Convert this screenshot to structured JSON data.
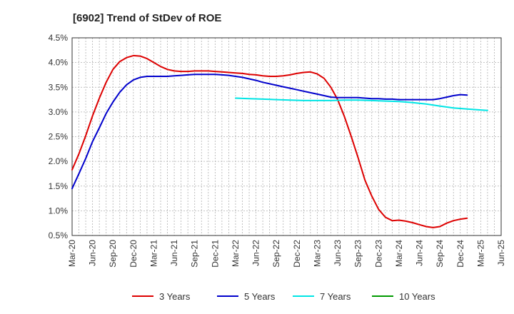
{
  "chart_data": {
    "type": "line",
    "title": "[6902]  Trend of StDev of ROE",
    "xlabel": "",
    "ylabel": "",
    "ylim": [
      0.5,
      4.5
    ],
    "y_ticks": [
      "0.5%",
      "1.0%",
      "1.5%",
      "2.0%",
      "2.5%",
      "3.0%",
      "3.5%",
      "4.0%",
      "4.5%"
    ],
    "y_tick_values": [
      0.5,
      1.0,
      1.5,
      2.0,
      2.5,
      3.0,
      3.5,
      4.0,
      4.5
    ],
    "x_ticks": [
      "Mar-20",
      "Jun-20",
      "Sep-20",
      "Dec-20",
      "Mar-21",
      "Jun-21",
      "Sep-21",
      "Dec-21",
      "Mar-22",
      "Jun-22",
      "Sep-22",
      "Dec-22",
      "Mar-23",
      "Jun-23",
      "Sep-23",
      "Dec-23",
      "Mar-24",
      "Jun-24",
      "Sep-24",
      "Dec-24",
      "Mar-25",
      "Jun-25"
    ],
    "x_note": "x values are month indices from Mar-20 (0) to Jun-25 (63)",
    "x_range": [
      0,
      63
    ],
    "grid": true,
    "legend_position": "bottom",
    "series": [
      {
        "name": "3 Years",
        "color": "#dd0000",
        "points": [
          [
            0,
            1.83
          ],
          [
            1,
            2.15
          ],
          [
            2,
            2.52
          ],
          [
            3,
            2.92
          ],
          [
            4,
            3.28
          ],
          [
            5,
            3.6
          ],
          [
            6,
            3.86
          ],
          [
            7,
            4.02
          ],
          [
            8,
            4.1
          ],
          [
            9,
            4.14
          ],
          [
            10,
            4.13
          ],
          [
            11,
            4.08
          ],
          [
            12,
            4.0
          ],
          [
            13,
            3.92
          ],
          [
            14,
            3.86
          ],
          [
            15,
            3.83
          ],
          [
            16,
            3.82
          ],
          [
            17,
            3.82
          ],
          [
            18,
            3.83
          ],
          [
            19,
            3.83
          ],
          [
            20,
            3.83
          ],
          [
            21,
            3.82
          ],
          [
            22,
            3.81
          ],
          [
            23,
            3.8
          ],
          [
            24,
            3.79
          ],
          [
            25,
            3.78
          ],
          [
            26,
            3.76
          ],
          [
            27,
            3.75
          ],
          [
            28,
            3.73
          ],
          [
            29,
            3.72
          ],
          [
            30,
            3.72
          ],
          [
            31,
            3.73
          ],
          [
            32,
            3.75
          ],
          [
            33,
            3.78
          ],
          [
            34,
            3.8
          ],
          [
            35,
            3.81
          ],
          [
            36,
            3.77
          ],
          [
            37,
            3.68
          ],
          [
            38,
            3.5
          ],
          [
            39,
            3.25
          ],
          [
            40,
            2.9
          ],
          [
            41,
            2.5
          ],
          [
            42,
            2.07
          ],
          [
            43,
            1.62
          ],
          [
            44,
            1.3
          ],
          [
            45,
            1.03
          ],
          [
            46,
            0.87
          ],
          [
            47,
            0.8
          ],
          [
            48,
            0.81
          ],
          [
            49,
            0.79
          ],
          [
            50,
            0.76
          ],
          [
            51,
            0.72
          ],
          [
            52,
            0.68
          ],
          [
            53,
            0.66
          ],
          [
            54,
            0.68
          ],
          [
            55,
            0.75
          ],
          [
            56,
            0.8
          ],
          [
            57,
            0.83
          ],
          [
            58,
            0.85
          ]
        ]
      },
      {
        "name": "5 Years",
        "color": "#0000cc",
        "points": [
          [
            0,
            1.45
          ],
          [
            1,
            1.75
          ],
          [
            2,
            2.06
          ],
          [
            3,
            2.4
          ],
          [
            4,
            2.68
          ],
          [
            5,
            2.97
          ],
          [
            6,
            3.2
          ],
          [
            7,
            3.4
          ],
          [
            8,
            3.55
          ],
          [
            9,
            3.65
          ],
          [
            10,
            3.7
          ],
          [
            11,
            3.72
          ],
          [
            12,
            3.72
          ],
          [
            13,
            3.72
          ],
          [
            14,
            3.72
          ],
          [
            15,
            3.73
          ],
          [
            16,
            3.74
          ],
          [
            17,
            3.75
          ],
          [
            18,
            3.76
          ],
          [
            19,
            3.76
          ],
          [
            20,
            3.76
          ],
          [
            21,
            3.76
          ],
          [
            22,
            3.75
          ],
          [
            23,
            3.74
          ],
          [
            24,
            3.72
          ],
          [
            25,
            3.7
          ],
          [
            26,
            3.67
          ],
          [
            27,
            3.64
          ],
          [
            28,
            3.6
          ],
          [
            29,
            3.57
          ],
          [
            30,
            3.54
          ],
          [
            31,
            3.51
          ],
          [
            32,
            3.48
          ],
          [
            33,
            3.45
          ],
          [
            34,
            3.42
          ],
          [
            35,
            3.39
          ],
          [
            36,
            3.36
          ],
          [
            37,
            3.33
          ],
          [
            38,
            3.3
          ],
          [
            39,
            3.29
          ],
          [
            40,
            3.29
          ],
          [
            41,
            3.29
          ],
          [
            42,
            3.29
          ],
          [
            43,
            3.28
          ],
          [
            44,
            3.27
          ],
          [
            45,
            3.27
          ],
          [
            46,
            3.26
          ],
          [
            47,
            3.26
          ],
          [
            48,
            3.25
          ],
          [
            49,
            3.25
          ],
          [
            50,
            3.25
          ],
          [
            51,
            3.25
          ],
          [
            52,
            3.25
          ],
          [
            53,
            3.25
          ],
          [
            54,
            3.27
          ],
          [
            55,
            3.3
          ],
          [
            56,
            3.33
          ],
          [
            57,
            3.35
          ],
          [
            58,
            3.34
          ]
        ]
      },
      {
        "name": "7 Years",
        "color": "#00e5e5",
        "points": [
          [
            24,
            3.28
          ],
          [
            26,
            3.27
          ],
          [
            28,
            3.26
          ],
          [
            30,
            3.25
          ],
          [
            32,
            3.24
          ],
          [
            34,
            3.23
          ],
          [
            36,
            3.23
          ],
          [
            38,
            3.23
          ],
          [
            40,
            3.24
          ],
          [
            42,
            3.24
          ],
          [
            44,
            3.23
          ],
          [
            46,
            3.22
          ],
          [
            48,
            3.21
          ],
          [
            50,
            3.19
          ],
          [
            52,
            3.16
          ],
          [
            54,
            3.12
          ],
          [
            56,
            3.08
          ],
          [
            58,
            3.06
          ],
          [
            60,
            3.04
          ],
          [
            61,
            3.03
          ]
        ]
      },
      {
        "name": "10 Years",
        "color": "#009900",
        "points": []
      }
    ]
  }
}
